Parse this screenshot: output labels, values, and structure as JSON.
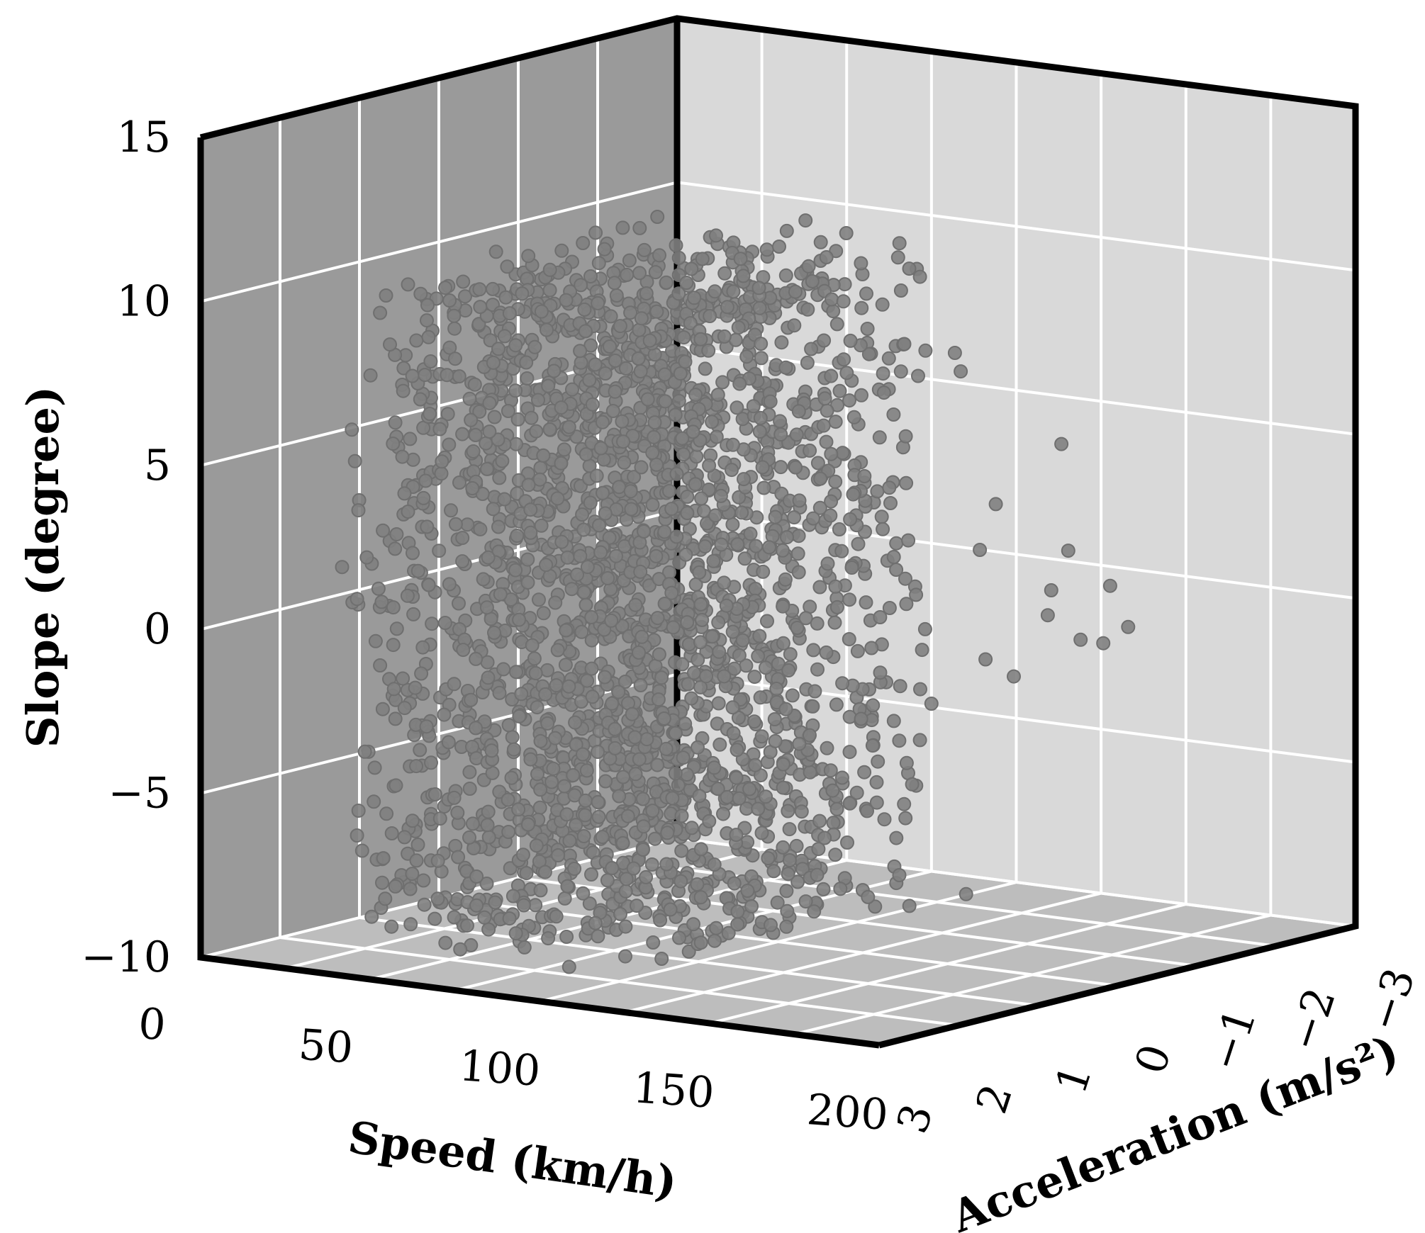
{
  "chart_data": {
    "type": "scatter",
    "projection": "3d",
    "title": "",
    "x_axis": {
      "label": "Speed (km/h)",
      "range": [
        0,
        200
      ],
      "ticks": [
        "0",
        "50",
        "100",
        "150",
        "200"
      ]
    },
    "y_axis": {
      "label": "Acceleration (m/s²)",
      "range": [
        3,
        -3
      ],
      "ticks": [
        "3",
        "2",
        "1",
        "0",
        "−1",
        "−2",
        "−3"
      ]
    },
    "z_axis": {
      "label": "Slope (degree)",
      "range": [
        -10,
        15
      ],
      "ticks": [
        "−10",
        "−5",
        "0",
        "5",
        "10",
        "15"
      ]
    },
    "grid": true,
    "legend": "none",
    "colors": {
      "points": "#808080",
      "left_pane": "#9a9a9a",
      "right_pane": "#d9d9d9",
      "floor_pane": "#bdbdbd"
    },
    "series": [
      {
        "marker": "circle",
        "description": "dense cloud of samples",
        "bulk": {
          "speed_range": [
            40,
            125
          ],
          "acceleration_range": [
            -1,
            3
          ],
          "slope_range": [
            -9,
            11
          ]
        },
        "points": [
          [
            80,
            -1.2,
            11
          ],
          [
            85,
            -1.5,
            10.5
          ],
          [
            95,
            -2.0,
            9
          ],
          [
            110,
            -1.8,
            7
          ],
          [
            125,
            -2.5,
            4
          ],
          [
            120,
            -2.8,
            0.5
          ],
          [
            130,
            -2.9,
            -0.5
          ],
          [
            140,
            -2.7,
            -1.5
          ],
          [
            135,
            -2.6,
            -2
          ],
          [
            90,
            -1.0,
            5
          ],
          [
            100,
            -1.4,
            3
          ],
          [
            115,
            -1.9,
            1
          ],
          [
            105,
            -1.6,
            -2
          ],
          [
            118,
            -2.2,
            -3
          ],
          [
            95,
            -0.9,
            -6
          ],
          [
            110,
            -1.1,
            -8.5
          ],
          [
            125,
            -1.3,
            -9
          ],
          [
            70,
            0.5,
            -9
          ],
          [
            40,
            1.0,
            -9
          ],
          [
            30,
            2.5,
            2
          ],
          [
            25,
            2.0,
            -4
          ],
          [
            35,
            2.2,
            3
          ],
          [
            45,
            1.5,
            4
          ],
          [
            60,
            0.2,
            -8.5
          ],
          [
            100,
            -2.3,
            6
          ],
          [
            108,
            -2.4,
            2
          ],
          [
            122,
            -2.5,
            -0.5
          ],
          [
            128,
            -2.2,
            -1
          ],
          [
            133,
            -2.4,
            -1.8
          ],
          [
            112,
            -2.1,
            -2.5
          ]
        ]
      }
    ]
  }
}
